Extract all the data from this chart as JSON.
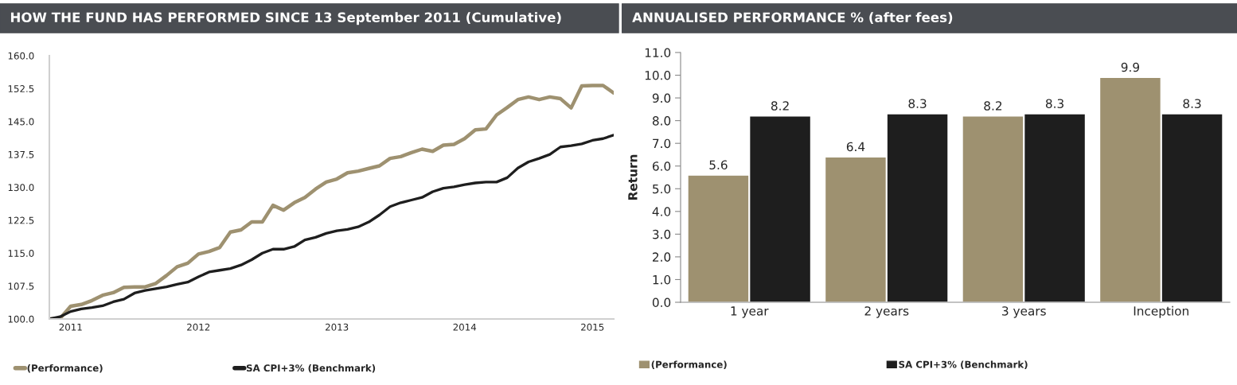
{
  "chart_data": [
    {
      "type": "line",
      "title": "HOW THE FUND HAS PERFORMED SINCE 13 September 2011 (Cumulative)",
      "categories": [
        null,
        null,
        "2011",
        null,
        null,
        null,
        null,
        null,
        null,
        null,
        null,
        null,
        null,
        null,
        "2012",
        null,
        null,
        null,
        null,
        null,
        null,
        null,
        null,
        null,
        null,
        null,
        null,
        "2013",
        null,
        null,
        null,
        null,
        null,
        null,
        null,
        null,
        null,
        null,
        null,
        "2014",
        null,
        null,
        null,
        null,
        null,
        null,
        null,
        null,
        null,
        null,
        null,
        "2015",
        null,
        null
      ],
      "series": [
        {
          "name": "(Performance)",
          "color": "#9e9170",
          "values": [
            100,
            100.1,
            102.9,
            103.3,
            104.2,
            105.4,
            106.0,
            107.2,
            107.3,
            107.3,
            108.1,
            109.9,
            111.9,
            112.7,
            114.8,
            115.4,
            116.3,
            119.8,
            120.3,
            122.1,
            122.1,
            125.9,
            124.8,
            126.5,
            127.7,
            129.6,
            131.2,
            131.9,
            133.3,
            133.7,
            134.3,
            134.9,
            136.6,
            137.0,
            137.9,
            138.7,
            138.2,
            139.6,
            139.8,
            141.1,
            143.1,
            143.3,
            146.5,
            148.2,
            150.0,
            150.6,
            150.0,
            150.6,
            150.2,
            148.1,
            153.1,
            153.2,
            153.2,
            151.5
          ]
        },
        {
          "name": "SA CPI+3% (Benchmark)",
          "color": "#1e1e1e",
          "values": [
            100,
            100.5,
            101.7,
            102.3,
            102.6,
            103.0,
            103.9,
            104.5,
            105.9,
            106.5,
            106.9,
            107.3,
            107.9,
            108.4,
            109.6,
            110.7,
            111.1,
            111.5,
            112.3,
            113.5,
            115.0,
            115.9,
            115.9,
            116.5,
            118.0,
            118.6,
            119.5,
            120.1,
            120.4,
            121.0,
            122.1,
            123.7,
            125.6,
            126.5,
            127.1,
            127.7,
            129.0,
            129.8,
            130.1,
            130.6,
            131.0,
            131.2,
            131.2,
            132.2,
            134.4,
            135.8,
            136.6,
            137.5,
            139.2,
            139.5,
            139.9,
            140.7,
            141.1,
            141.9
          ]
        }
      ],
      "ylim": [
        100,
        160
      ],
      "yticks": [
        {
          "value": 100,
          "label": "100.0"
        },
        {
          "value": 107.5,
          "label": "107.5"
        },
        {
          "value": 115,
          "label": "115.0"
        },
        {
          "value": 122.5,
          "label": "122.5"
        },
        {
          "value": 130,
          "label": "130.0"
        },
        {
          "value": 137.5,
          "label": "137.5"
        },
        {
          "value": 145,
          "label": "145.0"
        },
        {
          "value": 152.5,
          "label": "152.5"
        },
        {
          "value": 160,
          "label": "160.0"
        }
      ],
      "grid": false,
      "legend": "bottom",
      "marker": "none",
      "line_style": "solid"
    },
    {
      "type": "bar",
      "title": "ANNUALISED PERFORMANCE % (after fees)",
      "ylabel": "Return",
      "categories": [
        "1 year",
        "2 years",
        "3 years",
        "Inception"
      ],
      "series": [
        {
          "name": "(Performance)",
          "color": "#9e9170",
          "values": [
            5.6,
            6.4,
            8.2,
            9.9
          ]
        },
        {
          "name": "SA CPI+3% (Benchmark)",
          "color": "#1e1e1e",
          "values": [
            8.2,
            8.3,
            8.3,
            8.3
          ]
        }
      ],
      "ylim": [
        0,
        11
      ],
      "yticks": [
        {
          "value": 0,
          "label": "0.0"
        },
        {
          "value": 1,
          "label": "1.0"
        },
        {
          "value": 2,
          "label": "2.0"
        },
        {
          "value": 3,
          "label": "3.0"
        },
        {
          "value": 4,
          "label": "4.0"
        },
        {
          "value": 5,
          "label": "5.0"
        },
        {
          "value": 6,
          "label": "6.0"
        },
        {
          "value": 7,
          "label": "7.0"
        },
        {
          "value": 8,
          "label": "8.0"
        },
        {
          "value": 9,
          "label": "9.0"
        },
        {
          "value": 10,
          "label": "10.0"
        },
        {
          "value": 11,
          "label": "11.0"
        }
      ],
      "data_labels": true,
      "grid": false,
      "legend": "bottom"
    }
  ]
}
